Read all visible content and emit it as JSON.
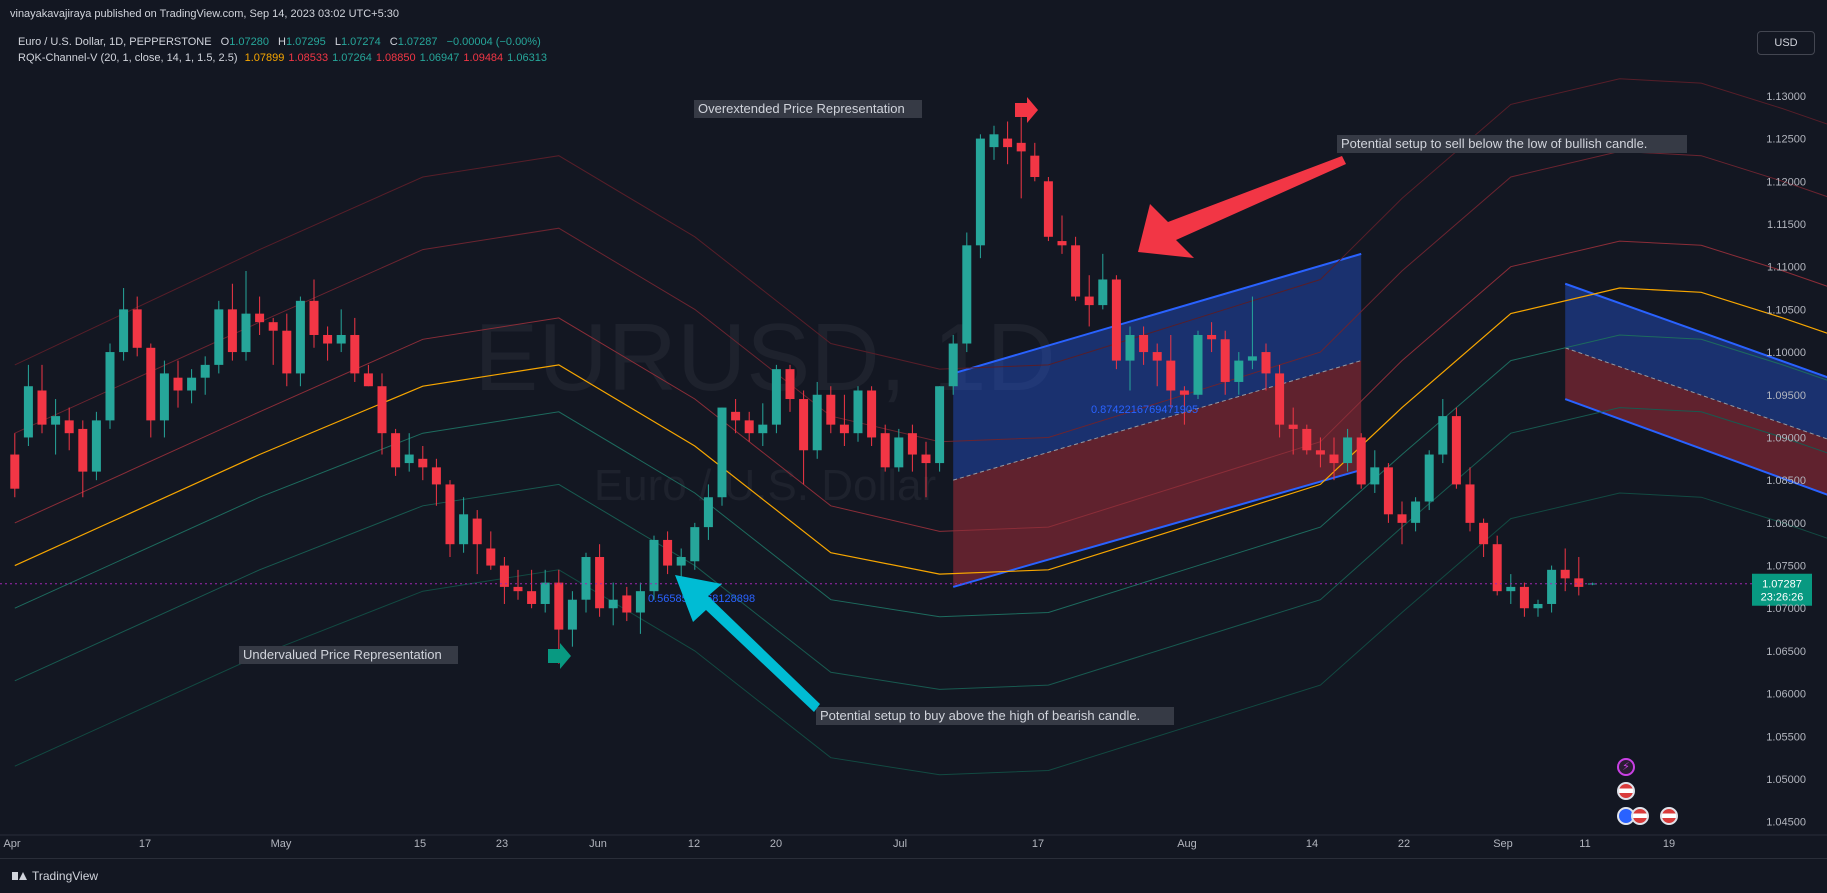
{
  "header": {
    "publisher": "vinayakavajiraya published on TradingView.com, Sep 14, 2023 03:02 UTC+5:30"
  },
  "legend": {
    "symbol": "Euro / U.S. Dollar, 1D, PEPPERSTONE",
    "o_label": "O",
    "o_value": "1.07280",
    "h_label": "H",
    "h_value": "1.07295",
    "l_label": "L",
    "l_value": "1.07274",
    "c_label": "C",
    "c_value": "1.07287",
    "change": "−0.00004 (−0.00%)",
    "indicator_name": "RQK-Channel-V (20, 1, close, 14, 1, 1.5, 2.5)",
    "indicator_values": [
      {
        "value": "1.07899",
        "color": "#f7a600"
      },
      {
        "value": "1.08533",
        "color": "#f23645"
      },
      {
        "value": "1.07264",
        "color": "#26a69a"
      },
      {
        "value": "1.08850",
        "color": "#f23645"
      },
      {
        "value": "1.06947",
        "color": "#26a69a"
      },
      {
        "value": "1.09484",
        "color": "#f23645"
      },
      {
        "value": "1.06313",
        "color": "#26a69a"
      }
    ]
  },
  "toolbar": {
    "currency": "USD"
  },
  "footer": {
    "brand": "TradingView"
  },
  "watermark": {
    "symbol": "EURUSD, 1D",
    "name": "Euro / U.S. Dollar"
  },
  "colors": {
    "background": "#131722",
    "up": "#26a69a",
    "down": "#f23645",
    "centerline": "#f7a600",
    "channel_blue": "#2962ff",
    "current_price": "#089981"
  },
  "annotations": {
    "overextended": "Overextended Price Representation",
    "undervalued": "Undervalued Price Representation",
    "sell_setup": "Potential setup to sell below the low of bullish candle.",
    "buy_setup": "Potential setup to buy above the high of bearish candle.",
    "fib_value_1": "0.8742216769471905",
    "fib_value_2": "0.5658530768128898"
  },
  "price_label": {
    "price": "1.07287",
    "countdown": "23:26:26"
  },
  "chart_data": {
    "type": "candlestick",
    "title": "Euro / U.S. Dollar, 1D, PEPPERSTONE",
    "ylim": [
      1.0445,
      1.1335
    ],
    "y_ticks": [
      "1.13000",
      "1.12500",
      "1.12000",
      "1.11500",
      "1.11000",
      "1.10500",
      "1.10000",
      "1.09500",
      "1.09000",
      "1.08500",
      "1.08000",
      "1.07500",
      "1.07000",
      "1.06500",
      "1.06000",
      "1.05500",
      "1.05000",
      "1.04500"
    ],
    "x_ticks": [
      "Apr",
      "17",
      "May",
      "15",
      "23",
      "Jun",
      "12",
      "20",
      "Jul",
      "17",
      "Aug",
      "14",
      "22",
      "Sep",
      "11",
      "19"
    ],
    "current_price": 1.07287,
    "candles": [
      [
        1.088,
        1.0905,
        1.083,
        1.084
      ],
      [
        1.09,
        1.0985,
        1.089,
        1.096
      ],
      [
        1.0955,
        1.0985,
        1.0905,
        1.0915
      ],
      [
        1.0915,
        1.0945,
        1.088,
        1.0925
      ],
      [
        1.092,
        1.0935,
        1.0885,
        1.0905
      ],
      [
        1.091,
        1.092,
        1.083,
        1.086
      ],
      [
        1.086,
        1.093,
        1.085,
        1.092
      ],
      [
        1.092,
        1.101,
        1.091,
        1.1
      ],
      [
        1.1,
        1.1075,
        1.099,
        1.105
      ],
      [
        1.105,
        1.1065,
        1.0995,
        1.1005
      ],
      [
        1.1005,
        1.101,
        1.09,
        1.092
      ],
      [
        1.092,
        1.099,
        1.09,
        1.0975
      ],
      [
        1.097,
        1.099,
        1.0935,
        1.0955
      ],
      [
        1.0955,
        1.098,
        1.094,
        1.097
      ],
      [
        1.097,
        1.0995,
        1.095,
        1.0985
      ],
      [
        1.0985,
        1.106,
        1.0975,
        1.105
      ],
      [
        1.105,
        1.108,
        1.099,
        1.1
      ],
      [
        1.1,
        1.1095,
        1.099,
        1.1045
      ],
      [
        1.1045,
        1.1065,
        1.102,
        1.1035
      ],
      [
        1.1035,
        1.104,
        1.0985,
        1.1025
      ],
      [
        1.1025,
        1.1045,
        1.096,
        1.0975
      ],
      [
        1.0975,
        1.1065,
        1.096,
        1.106
      ],
      [
        1.106,
        1.1085,
        1.1005,
        1.102
      ],
      [
        1.102,
        1.103,
        1.099,
        1.101
      ],
      [
        1.101,
        1.105,
        1.1,
        1.102
      ],
      [
        1.102,
        1.104,
        1.0965,
        1.0975
      ],
      [
        1.0975,
        1.0985,
        1.096,
        1.096
      ],
      [
        1.096,
        1.0975,
        1.088,
        1.0905
      ],
      [
        1.0905,
        1.091,
        1.0855,
        1.0865
      ],
      [
        1.087,
        1.0905,
        1.086,
        1.088
      ],
      [
        1.0875,
        1.089,
        1.085,
        1.0865
      ],
      [
        1.0865,
        1.0875,
        1.082,
        1.0845
      ],
      [
        1.0845,
        1.085,
        1.076,
        1.0775
      ],
      [
        1.0775,
        1.083,
        1.0765,
        1.081
      ],
      [
        1.0805,
        1.0815,
        1.074,
        1.0775
      ],
      [
        1.077,
        1.079,
        1.0745,
        1.075
      ],
      [
        1.075,
        1.076,
        1.0705,
        1.0725
      ],
      [
        1.0725,
        1.0745,
        1.071,
        1.072
      ],
      [
        1.072,
        1.0745,
        1.07,
        1.0705
      ],
      [
        1.0705,
        1.0745,
        1.0695,
        1.073
      ],
      [
        1.073,
        1.0745,
        1.0635,
        1.0675
      ],
      [
        1.0675,
        1.072,
        1.0655,
        1.071
      ],
      [
        1.071,
        1.0765,
        1.0695,
        1.076
      ],
      [
        1.076,
        1.0775,
        1.069,
        1.07
      ],
      [
        1.07,
        1.073,
        1.068,
        1.071
      ],
      [
        1.0715,
        1.0725,
        1.0685,
        1.0695
      ],
      [
        1.0695,
        1.073,
        1.067,
        1.072
      ],
      [
        1.072,
        1.0785,
        1.071,
        1.078
      ],
      [
        1.078,
        1.079,
        1.074,
        1.075
      ],
      [
        1.075,
        1.077,
        1.0735,
        1.076
      ],
      [
        1.0755,
        1.08,
        1.0745,
        1.0795
      ],
      [
        1.0795,
        1.0845,
        1.078,
        1.083
      ],
      [
        1.083,
        1.0935,
        1.082,
        1.0935
      ],
      [
        1.093,
        1.0945,
        1.0905,
        1.092
      ],
      [
        1.092,
        1.093,
        1.0895,
        1.0905
      ],
      [
        1.0905,
        1.094,
        1.089,
        1.0915
      ],
      [
        1.0915,
        1.0985,
        1.0905,
        1.098
      ],
      [
        1.098,
        1.0985,
        1.093,
        1.0945
      ],
      [
        1.0945,
        1.0955,
        1.0845,
        1.0885
      ],
      [
        1.0885,
        1.0965,
        1.0875,
        1.095
      ],
      [
        1.095,
        1.096,
        1.0905,
        1.0915
      ],
      [
        1.0915,
        1.095,
        1.089,
        1.0905
      ],
      [
        1.0905,
        1.096,
        1.0895,
        1.0955
      ],
      [
        1.0955,
        1.096,
        1.089,
        1.09
      ],
      [
        1.0905,
        1.0915,
        1.086,
        1.0865
      ],
      [
        1.0865,
        1.091,
        1.086,
        1.09
      ],
      [
        1.0905,
        1.0915,
        1.086,
        1.088
      ],
      [
        1.088,
        1.0895,
        1.083,
        1.087
      ],
      [
        1.087,
        1.096,
        1.086,
        1.096
      ],
      [
        1.096,
        1.102,
        1.095,
        1.101
      ],
      [
        1.101,
        1.114,
        1.1,
        1.1125
      ],
      [
        1.1125,
        1.1255,
        1.111,
        1.125
      ],
      [
        1.124,
        1.1265,
        1.1225,
        1.1255
      ],
      [
        1.125,
        1.127,
        1.122,
        1.124
      ],
      [
        1.1245,
        1.1275,
        1.118,
        1.1235
      ],
      [
        1.123,
        1.1245,
        1.12,
        1.1205
      ],
      [
        1.12,
        1.1205,
        1.113,
        1.1135
      ],
      [
        1.113,
        1.116,
        1.1115,
        1.1125
      ],
      [
        1.1125,
        1.1135,
        1.106,
        1.1065
      ],
      [
        1.1065,
        1.109,
        1.103,
        1.1055
      ],
      [
        1.1055,
        1.1115,
        1.105,
        1.1085
      ],
      [
        1.1085,
        1.109,
        1.098,
        1.099
      ],
      [
        1.099,
        1.103,
        1.0955,
        1.102
      ],
      [
        1.102,
        1.103,
        1.0985,
        1.1
      ],
      [
        1.1,
        1.101,
        1.096,
        1.099
      ],
      [
        1.099,
        1.102,
        1.0935,
        1.0955
      ],
      [
        1.0955,
        1.096,
        1.0915,
        1.095
      ],
      [
        1.095,
        1.1025,
        1.0945,
        1.102
      ],
      [
        1.102,
        1.1035,
        1.1,
        1.1015
      ],
      [
        1.1015,
        1.1025,
        1.095,
        1.0965
      ],
      [
        1.0965,
        1.1,
        1.095,
        1.099
      ],
      [
        1.099,
        1.1065,
        1.098,
        1.0995
      ],
      [
        1.1,
        1.101,
        1.0955,
        1.0975
      ],
      [
        1.0975,
        1.0985,
        1.09,
        1.0915
      ],
      [
        1.0915,
        1.0935,
        1.088,
        1.091
      ],
      [
        1.091,
        1.0915,
        1.088,
        1.0885
      ],
      [
        1.0885,
        1.09,
        1.0865,
        1.088
      ],
      [
        1.088,
        1.09,
        1.085,
        1.087
      ],
      [
        1.087,
        1.091,
        1.086,
        1.09
      ],
      [
        1.09,
        1.0905,
        1.084,
        1.0845
      ],
      [
        1.0845,
        1.0885,
        1.0835,
        1.0865
      ],
      [
        1.0865,
        1.087,
        1.08,
        1.081
      ],
      [
        1.081,
        1.0825,
        1.0775,
        1.08
      ],
      [
        1.08,
        1.083,
        1.079,
        1.0825
      ],
      [
        1.0825,
        1.0885,
        1.0815,
        1.088
      ],
      [
        1.088,
        1.0945,
        1.087,
        1.0925
      ],
      [
        1.0925,
        1.0935,
        1.084,
        1.0845
      ],
      [
        1.0845,
        1.0865,
        1.079,
        1.08
      ],
      [
        1.08,
        1.0805,
        1.076,
        1.0775
      ],
      [
        1.0775,
        1.0785,
        1.0715,
        1.072
      ],
      [
        1.072,
        1.074,
        1.0705,
        1.0725
      ],
      [
        1.0725,
        1.073,
        1.069,
        1.07
      ],
      [
        1.07,
        1.071,
        1.069,
        1.0705
      ],
      [
        1.0705,
        1.075,
        1.0695,
        1.0745
      ],
      [
        1.0745,
        1.077,
        1.072,
        1.0735
      ],
      [
        1.0735,
        1.076,
        1.0715,
        1.0725
      ],
      [
        1.0728,
        1.073,
        1.0727,
        1.0729
      ]
    ],
    "centerline": [
      [
        0,
        1.075
      ],
      [
        18,
        1.088
      ],
      [
        30,
        1.096
      ],
      [
        40,
        1.0985
      ],
      [
        50,
        1.089
      ],
      [
        60,
        1.0765
      ],
      [
        68,
        1.074
      ],
      [
        76,
        1.0745
      ],
      [
        86,
        1.0795
      ],
      [
        96,
        1.0845
      ],
      [
        102,
        1.0935
      ],
      [
        110,
        1.1045
      ],
      [
        118,
        1.1075
      ],
      [
        124,
        1.107
      ],
      [
        130,
        1.104
      ],
      [
        140,
        1.0985
      ],
      [
        150,
        1.092
      ],
      [
        158,
        1.0875
      ],
      [
        164,
        1.079
      ]
    ],
    "upper_bands": [
      [
        [
          0,
          1.08
        ],
        [
          18,
          1.093
        ],
        [
          30,
          1.1015
        ],
        [
          40,
          1.104
        ],
        [
          50,
          1.0945
        ],
        [
          60,
          1.082
        ],
        [
          68,
          1.079
        ],
        [
          76,
          1.0795
        ],
        [
          86,
          1.0845
        ],
        [
          96,
          1.0895
        ],
        [
          102,
          1.099
        ],
        [
          110,
          1.11
        ],
        [
          118,
          1.113
        ],
        [
          124,
          1.1125
        ],
        [
          130,
          1.1095
        ],
        [
          140,
          1.104
        ],
        [
          150,
          1.0975
        ],
        [
          158,
          1.093
        ],
        [
          164,
          1.086
        ]
      ],
      [
        [
          0,
          1.0905
        ],
        [
          18,
          1.1035
        ],
        [
          30,
          1.112
        ],
        [
          40,
          1.1145
        ],
        [
          50,
          1.105
        ],
        [
          60,
          1.0925
        ],
        [
          68,
          1.0895
        ],
        [
          76,
          1.09
        ],
        [
          86,
          1.095
        ],
        [
          96,
          1.1
        ],
        [
          102,
          1.1095
        ],
        [
          110,
          1.1205
        ],
        [
          118,
          1.1235
        ],
        [
          124,
          1.123
        ],
        [
          130,
          1.12
        ],
        [
          140,
          1.1145
        ],
        [
          150,
          1.108
        ],
        [
          158,
          1.1035
        ],
        [
          164,
          1.095
        ]
      ],
      [
        [
          0,
          1.0985
        ],
        [
          18,
          1.112
        ],
        [
          30,
          1.1205
        ],
        [
          40,
          1.123
        ],
        [
          50,
          1.1135
        ],
        [
          60,
          1.101
        ],
        [
          68,
          1.098
        ],
        [
          76,
          1.0985
        ],
        [
          86,
          1.1035
        ],
        [
          96,
          1.1085
        ],
        [
          102,
          1.118
        ],
        [
          110,
          1.129
        ],
        [
          118,
          1.132
        ],
        [
          124,
          1.1315
        ],
        [
          130,
          1.1285
        ],
        [
          140,
          1.123
        ],
        [
          150,
          1.1165
        ],
        [
          158,
          1.112
        ],
        [
          164,
          1.104
        ]
      ]
    ],
    "lower_bands": [
      [
        [
          0,
          1.07
        ],
        [
          18,
          1.083
        ],
        [
          30,
          1.0905
        ],
        [
          40,
          1.093
        ],
        [
          50,
          1.0835
        ],
        [
          60,
          1.071
        ],
        [
          68,
          1.069
        ],
        [
          76,
          1.0695
        ],
        [
          86,
          1.0745
        ],
        [
          96,
          1.0795
        ],
        [
          102,
          1.088
        ],
        [
          110,
          1.099
        ],
        [
          118,
          1.102
        ],
        [
          124,
          1.1015
        ],
        [
          130,
          1.0985
        ],
        [
          140,
          1.093
        ],
        [
          150,
          1.0865
        ],
        [
          158,
          1.082
        ],
        [
          164,
          1.0735
        ]
      ],
      [
        [
          0,
          1.0615
        ],
        [
          18,
          1.0745
        ],
        [
          30,
          1.082
        ],
        [
          40,
          1.0845
        ],
        [
          50,
          1.075
        ],
        [
          60,
          1.0625
        ],
        [
          68,
          1.0605
        ],
        [
          76,
          1.061
        ],
        [
          86,
          1.066
        ],
        [
          96,
          1.071
        ],
        [
          102,
          1.0795
        ],
        [
          110,
          1.0905
        ],
        [
          118,
          1.0935
        ],
        [
          124,
          1.093
        ],
        [
          130,
          1.09
        ],
        [
          140,
          1.0845
        ],
        [
          150,
          1.078
        ],
        [
          158,
          1.0735
        ],
        [
          164,
          1.069
        ]
      ],
      [
        [
          0,
          1.0515
        ],
        [
          18,
          1.0645
        ],
        [
          30,
          1.072
        ],
        [
          40,
          1.0745
        ],
        [
          50,
          1.065
        ],
        [
          60,
          1.0525
        ],
        [
          68,
          1.0505
        ],
        [
          76,
          1.051
        ],
        [
          86,
          1.056
        ],
        [
          96,
          1.061
        ],
        [
          102,
          1.0695
        ],
        [
          110,
          1.0805
        ],
        [
          118,
          1.0835
        ],
        [
          124,
          1.083
        ],
        [
          130,
          1.08
        ],
        [
          140,
          1.0745
        ],
        [
          150,
          1.068
        ],
        [
          158,
          1.0635
        ],
        [
          164,
          1.0628
        ]
      ]
    ],
    "bull_channel": {
      "start": [
        69,
        1.0975,
        1.0725
      ],
      "end": [
        99,
        1.1115,
        1.0862
      ],
      "mid": [
        69,
        1.085,
        99,
        1.099
      ]
    },
    "bear_channel": {
      "start": [
        114,
        1.108,
        1.0945
      ],
      "end": [
        151,
        1.087,
        1.073
      ],
      "mid": [
        114,
        1.1005,
        151,
        1.08
      ]
    }
  }
}
